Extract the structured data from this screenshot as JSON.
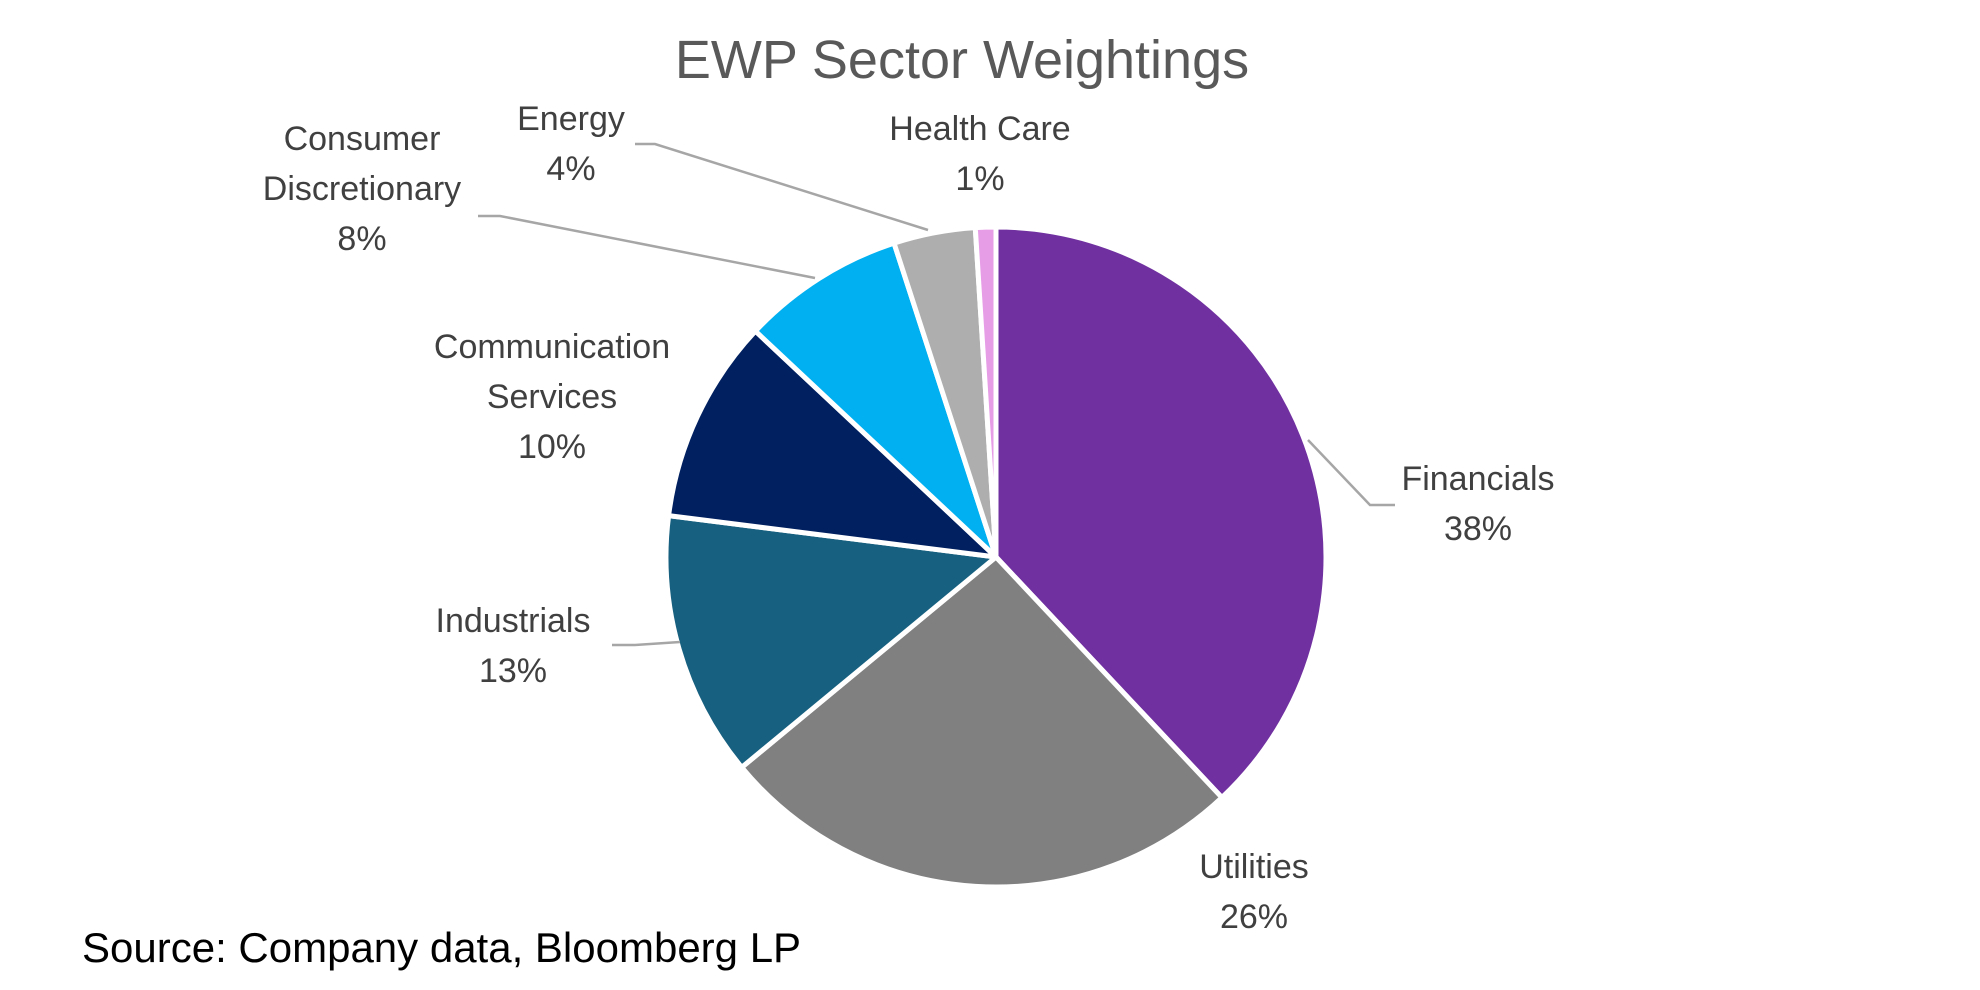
{
  "source_note": "Source: Company data, Bloomberg LP",
  "chart_data": {
    "type": "pie",
    "title": "EWP Sector Weightings",
    "slices": [
      {
        "label_lines": [
          "Financials"
        ],
        "value": 38,
        "value_label": "38%",
        "color": "#7030a0"
      },
      {
        "label_lines": [
          "Utilities"
        ],
        "value": 26,
        "value_label": "26%",
        "color": "#808080"
      },
      {
        "label_lines": [
          "Industrials"
        ],
        "value": 13,
        "value_label": "13%",
        "color": "#17607f"
      },
      {
        "label_lines": [
          "Communication",
          "Services"
        ],
        "value": 10,
        "value_label": "10%",
        "color": "#002060"
      },
      {
        "label_lines": [
          "Consumer",
          "Discretionary"
        ],
        "value": 8,
        "value_label": "8%",
        "color": "#00b0f0"
      },
      {
        "label_lines": [
          "Energy"
        ],
        "value": 4,
        "value_label": "4%",
        "color": "#aeaeae"
      },
      {
        "label_lines": [
          "Health Care"
        ],
        "value": 1,
        "value_label": "1%",
        "color": "#e69de6"
      }
    ],
    "start_angle_deg": 0,
    "direction": "clockwise",
    "slice_border_color": "#ffffff",
    "leader_line_color": "#a6a6a6",
    "legend": "none"
  }
}
